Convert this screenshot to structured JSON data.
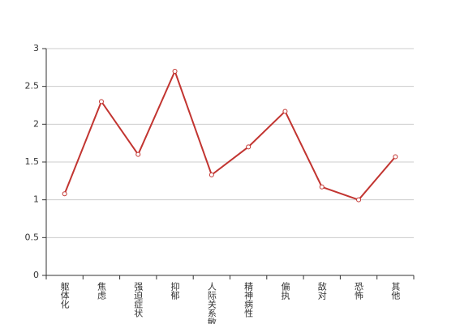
{
  "chart_data": {
    "type": "line",
    "categories": [
      "躯体化",
      "焦虑",
      "强迫症状",
      "抑郁",
      "人际关系敏感",
      "精神病性",
      "偏执",
      "敌对",
      "恐怖",
      "其他"
    ],
    "series": [
      {
        "color": "#c23531",
        "values": [
          1.08,
          2.3,
          1.6,
          2.7,
          1.33,
          1.7,
          2.17,
          1.17,
          1.0,
          1.57
        ]
      }
    ],
    "ylim": [
      0,
      3
    ],
    "yticks": [
      0,
      0.5,
      1,
      1.5,
      2,
      2.5,
      3
    ],
    "grid": true
  }
}
